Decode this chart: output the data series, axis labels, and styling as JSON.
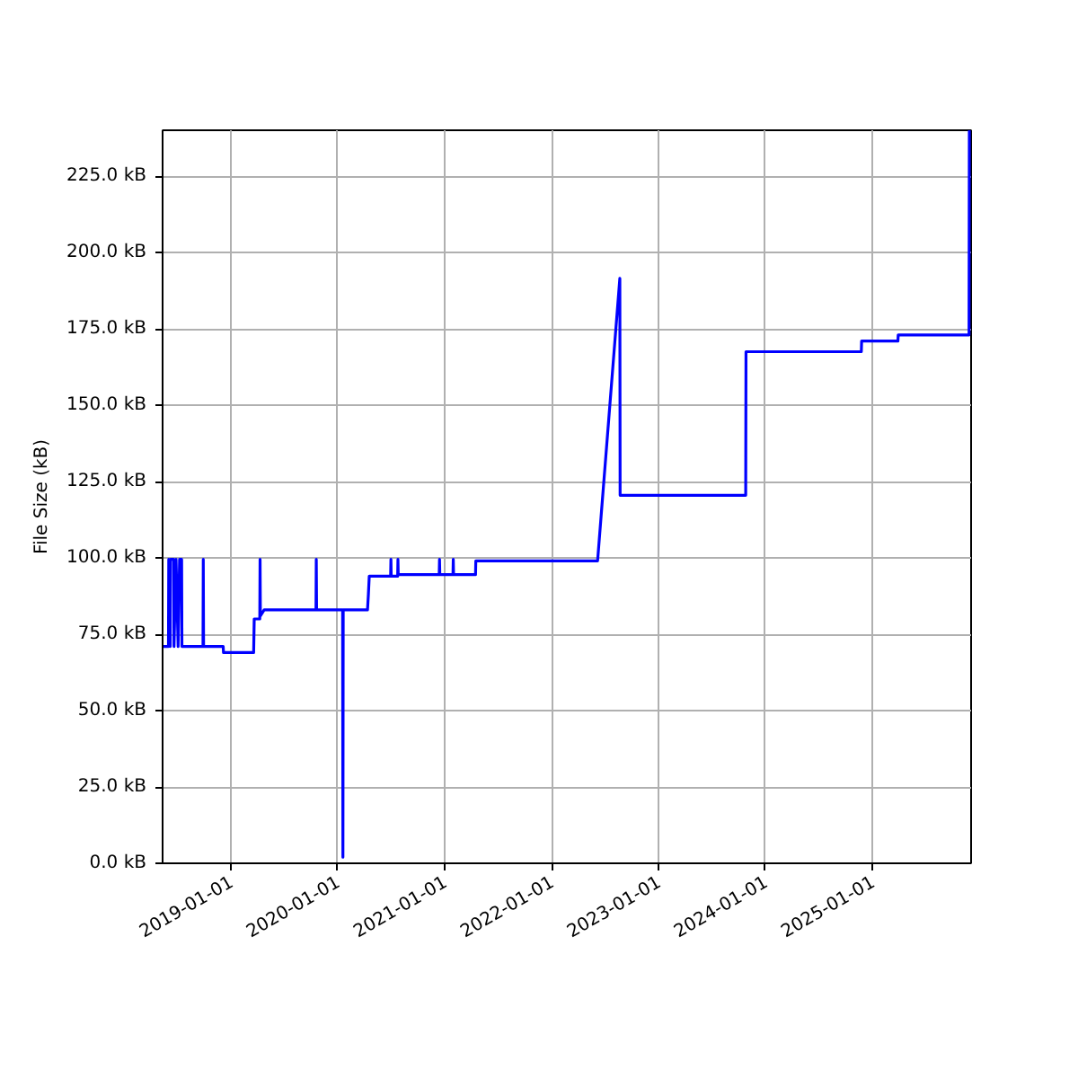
{
  "chart_data": {
    "type": "line",
    "ylabel": "File Size (kB)",
    "x": [
      "2018-05-13",
      "2018-06-02",
      "2018-06-03",
      "2018-06-08",
      "2018-06-09",
      "2018-06-20",
      "2018-06-21",
      "2018-06-28",
      "2018-07-05",
      "2018-07-10",
      "2018-07-17",
      "2018-07-18",
      "2018-09-28",
      "2018-09-29",
      "2018-09-30",
      "2018-12-06",
      "2018-12-07",
      "2019-03-20",
      "2019-03-22",
      "2019-04-10",
      "2019-04-11",
      "2019-04-12",
      "2019-04-25",
      "2019-10-19",
      "2019-10-20",
      "2019-10-21",
      "2020-01-18",
      "2020-01-19",
      "2020-01-20",
      "2020-04-12",
      "2020-04-15",
      "2020-04-18",
      "2020-06-30",
      "2020-07-01",
      "2020-07-02",
      "2020-07-24",
      "2020-07-25",
      "2020-07-26",
      "2020-12-13",
      "2020-12-14",
      "2020-12-15",
      "2021-01-29",
      "2021-01-30",
      "2021-01-31",
      "2021-04-16",
      "2021-04-17",
      "2022-06-07",
      "2022-08-22",
      "2022-08-23",
      "2023-10-26",
      "2023-10-27",
      "2024-11-24",
      "2024-11-25",
      "2025-03-29",
      "2025-03-30",
      "2025-11-27",
      "2025-11-28"
    ],
    "series": [
      {
        "color": "#0000ff",
        "values": [
          71,
          71,
          99.5,
          71,
          99.5,
          99.5,
          71,
          99.5,
          71,
          99.5,
          99.5,
          71,
          71,
          99.5,
          71,
          71,
          69,
          69,
          80,
          80,
          99.5,
          81,
          83,
          83,
          99.5,
          83,
          83,
          2,
          83,
          83,
          88,
          94,
          94,
          99.5,
          94,
          94,
          99.5,
          94.5,
          94.5,
          99.5,
          94.5,
          94.5,
          99.5,
          94.5,
          94.5,
          99,
          99,
          191.5,
          120.5,
          120.5,
          167.5,
          167.5,
          171,
          171,
          173,
          173,
          240
        ]
      }
    ],
    "xlim": [
      "2018-05-13",
      "2025-12-04"
    ],
    "xticks": [
      "2019-01-01",
      "2020-01-01",
      "2021-01-01",
      "2022-01-01",
      "2023-01-01",
      "2024-01-01",
      "2025-01-01"
    ],
    "ylim": [
      0,
      240
    ],
    "yticks": [
      {
        "value": 0,
        "label": "0.0 kB"
      },
      {
        "value": 25,
        "label": "25.0 kB"
      },
      {
        "value": 50,
        "label": "50.0 kB"
      },
      {
        "value": 75,
        "label": "75.0 kB"
      },
      {
        "value": 100,
        "label": "100.0 kB"
      },
      {
        "value": 125,
        "label": "125.0 kB"
      },
      {
        "value": 150,
        "label": "150.0 kB"
      },
      {
        "value": 175,
        "label": "175.0 kB"
      },
      {
        "value": 200,
        "label": "200.0 kB"
      },
      {
        "value": 225,
        "label": "225.0 kB"
      }
    ],
    "grid": true,
    "marker": "none",
    "line_style": "solid"
  }
}
